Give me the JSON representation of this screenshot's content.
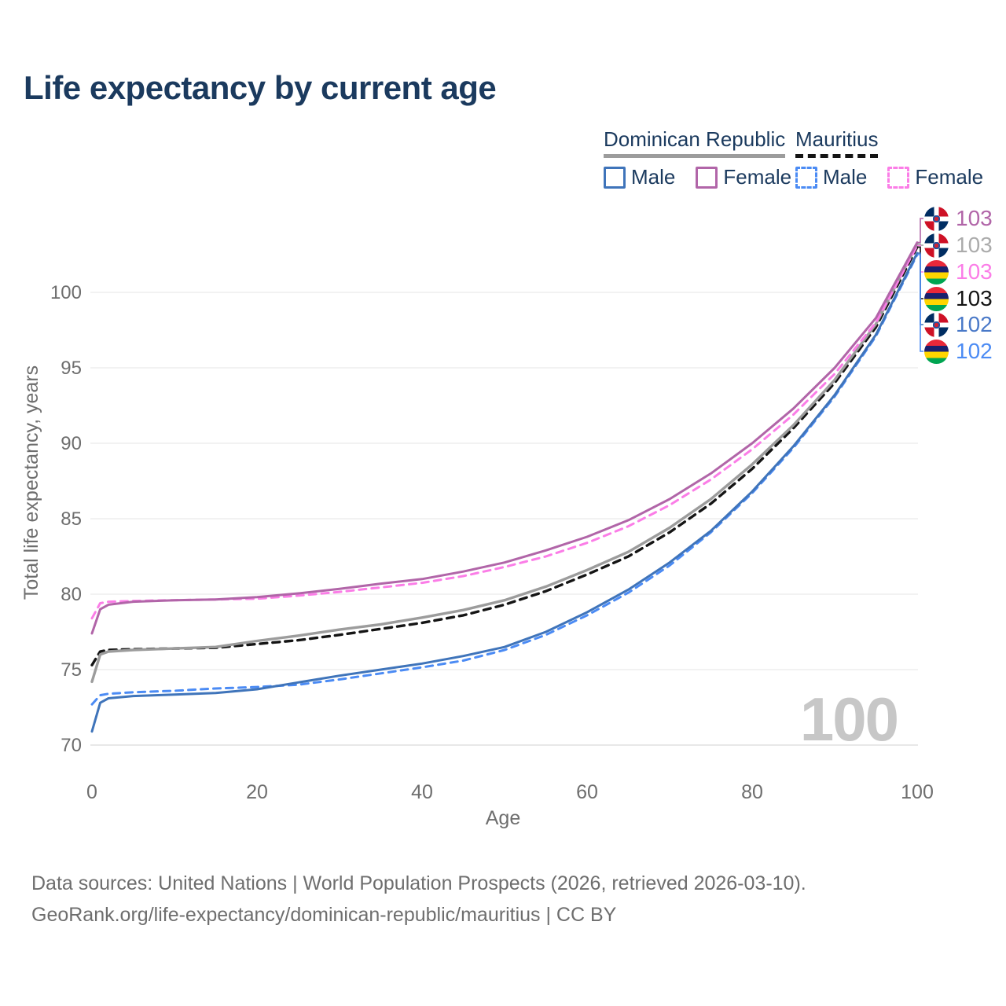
{
  "title": "Life expectancy by current age",
  "legend": {
    "groups": [
      {
        "label": "Dominican Republic",
        "underline_style": "solid",
        "underline_color": "#9c9c9c",
        "items": [
          {
            "label": "Male",
            "color": "#3f74ba",
            "dashed": false
          },
          {
            "label": "Female",
            "color": "#b165a8",
            "dashed": false
          }
        ]
      },
      {
        "label": "Mauritius",
        "underline_style": "dashed",
        "underline_color": "#141414",
        "items": [
          {
            "label": "Male",
            "color": "#4b8bf4",
            "dashed": true
          },
          {
            "label": "Female",
            "color": "#fb7de7",
            "dashed": true
          }
        ]
      }
    ]
  },
  "axes": {
    "y_title": "Total life expectancy, years",
    "x_title": "Age",
    "y_ticks": [
      "100",
      "95",
      "90",
      "85",
      "80",
      "75",
      "70"
    ],
    "x_ticks": [
      "0",
      "20",
      "40",
      "60",
      "80",
      "100"
    ]
  },
  "watermark": "100",
  "end_labels": [
    {
      "flag": "dominican-republic-flag-icon",
      "value": "103",
      "color": "#b165a8"
    },
    {
      "flag": "dominican-republic-flag-icon",
      "value": "103",
      "color": "#ababab"
    },
    {
      "flag": "mauritius-flag-icon",
      "value": "103",
      "color": "#fb7de7"
    },
    {
      "flag": "mauritius-flag-icon",
      "value": "103",
      "color": "#141414"
    },
    {
      "flag": "dominican-republic-flag-icon",
      "value": "102",
      "color": "#4a79c8"
    },
    {
      "flag": "mauritius-flag-icon",
      "value": "102",
      "color": "#4b8bf4"
    }
  ],
  "footer": {
    "line1": "Data sources: United Nations | World Population Prospects (2026, retrieved 2026-03-10).",
    "line2": "GeoRank.org/life-expectancy/dominican-republic/mauritius | CC BY"
  },
  "chart_data": {
    "type": "line",
    "title": "Life expectancy by current age",
    "xlabel": "Age",
    "ylabel": "Total life expectancy, years",
    "xlim": [
      0,
      100
    ],
    "ylim": [
      70,
      104
    ],
    "grid": true,
    "legend_position": "top-right",
    "x": [
      0,
      1,
      2,
      5,
      10,
      15,
      20,
      25,
      30,
      35,
      40,
      45,
      50,
      55,
      60,
      65,
      70,
      75,
      80,
      85,
      90,
      95,
      100
    ],
    "series": [
      {
        "name": "Dominican Republic Female",
        "color": "#b165a8",
        "dashed": false,
        "values": [
          77.4,
          79.0,
          79.3,
          79.5,
          79.6,
          79.65,
          79.8,
          80.05,
          80.35,
          80.7,
          81.0,
          81.5,
          82.1,
          82.9,
          83.8,
          84.9,
          86.3,
          88.0,
          90.0,
          92.3,
          95.0,
          98.3,
          103.3
        ]
      },
      {
        "name": "Dominican Republic Both sexes",
        "color": "#9c9c9c",
        "dashed": false,
        "values": [
          74.2,
          76.0,
          76.2,
          76.3,
          76.4,
          76.5,
          76.9,
          77.25,
          77.65,
          78.0,
          78.45,
          78.95,
          79.6,
          80.5,
          81.6,
          82.8,
          84.4,
          86.3,
          88.6,
          91.2,
          94.2,
          97.9,
          103.2
        ]
      },
      {
        "name": "Mauritius Female",
        "color": "#fb7de7",
        "dashed": true,
        "values": [
          78.4,
          79.4,
          79.5,
          79.55,
          79.6,
          79.65,
          79.7,
          79.9,
          80.15,
          80.45,
          80.75,
          81.2,
          81.8,
          82.5,
          83.4,
          84.5,
          85.9,
          87.6,
          89.6,
          91.9,
          94.6,
          98.0,
          103.1
        ]
      },
      {
        "name": "Mauritius Both sexes",
        "color": "#141414",
        "dashed": true,
        "values": [
          75.3,
          76.2,
          76.3,
          76.35,
          76.4,
          76.45,
          76.7,
          76.95,
          77.3,
          77.7,
          78.1,
          78.6,
          79.3,
          80.2,
          81.3,
          82.5,
          84.1,
          86.0,
          88.3,
          91.0,
          94.0,
          97.7,
          103.0
        ]
      },
      {
        "name": "Dominican Republic Male",
        "color": "#3f74ba",
        "dashed": false,
        "values": [
          70.9,
          72.8,
          73.1,
          73.25,
          73.35,
          73.45,
          73.7,
          74.15,
          74.6,
          75.0,
          75.4,
          75.9,
          76.5,
          77.5,
          78.8,
          80.3,
          82.1,
          84.2,
          86.8,
          89.8,
          93.2,
          97.2,
          102.6
        ]
      },
      {
        "name": "Mauritius Male",
        "color": "#4b8bf4",
        "dashed": true,
        "values": [
          72.7,
          73.3,
          73.4,
          73.5,
          73.6,
          73.75,
          73.85,
          74.0,
          74.35,
          74.75,
          75.15,
          75.6,
          76.3,
          77.3,
          78.6,
          80.1,
          81.9,
          84.1,
          86.7,
          89.7,
          93.1,
          97.1,
          102.5
        ]
      }
    ]
  }
}
